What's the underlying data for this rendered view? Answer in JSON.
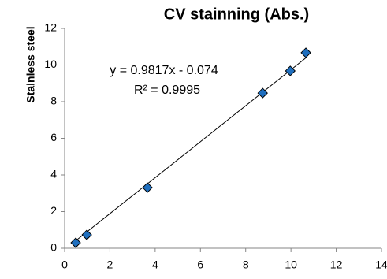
{
  "chart_data": {
    "type": "scatter",
    "title": "CV stainning (Abs.)",
    "y_label": "Stainless steel",
    "series": [
      {
        "name": "Stainless steel",
        "color": "#1f6fbf",
        "x": [
          0.49,
          0.98,
          3.66,
          8.75,
          9.97,
          10.66
        ],
        "values": [
          0.3,
          0.73,
          3.31,
          8.47,
          9.68,
          10.67
        ]
      }
    ],
    "trendline": {
      "slope": 0.9817,
      "intercept": -0.074,
      "color": "#000000"
    },
    "annotations": [
      "y = 0.9817x - 0.074",
      "R² = 0.9995"
    ],
    "xlim": [
      0,
      14
    ],
    "xticks": [
      0,
      2,
      4,
      6,
      8,
      10,
      12,
      14
    ],
    "ylim": [
      0,
      12
    ],
    "yticks": [
      0,
      2,
      4,
      6,
      8,
      10,
      12
    ],
    "grid": false
  }
}
